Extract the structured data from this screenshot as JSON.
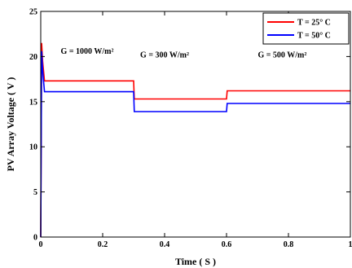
{
  "chart_data": {
    "type": "line",
    "xlabel": "Time ( S )",
    "ylabel": "PV Array Voltage ( V )",
    "xlim": [
      0,
      1
    ],
    "ylim": [
      0,
      25
    ],
    "x_ticks": [
      0,
      0.2,
      0.4,
      0.6,
      0.8,
      1
    ],
    "y_ticks": [
      0,
      5,
      10,
      15,
      20,
      25
    ],
    "grid": false,
    "legend_position": "top-right",
    "series": [
      {
        "name": "T = 25° C",
        "color": "#ff0000",
        "x": [
          0,
          0.003,
          0.006,
          0.012,
          0.3,
          0.302,
          0.6,
          0.602,
          1.0
        ],
        "y": [
          0,
          21.5,
          19.5,
          17.3,
          17.3,
          15.3,
          15.3,
          16.2,
          16.2
        ]
      },
      {
        "name": "T = 50° C",
        "color": "#0000ff",
        "x": [
          0,
          0.003,
          0.006,
          0.012,
          0.3,
          0.302,
          0.6,
          0.602,
          1.0
        ],
        "y": [
          0,
          20.6,
          18.5,
          16.1,
          16.1,
          13.9,
          13.9,
          14.8,
          14.8
        ]
      }
    ],
    "annotations": [
      {
        "text": "G = 1000 W/m²",
        "x": 0.15,
        "y": 20.3
      },
      {
        "text": "G = 300 W/m²",
        "x": 0.4,
        "y": 19.9
      },
      {
        "text": "G = 500 W/m²",
        "x": 0.78,
        "y": 19.9
      }
    ]
  }
}
